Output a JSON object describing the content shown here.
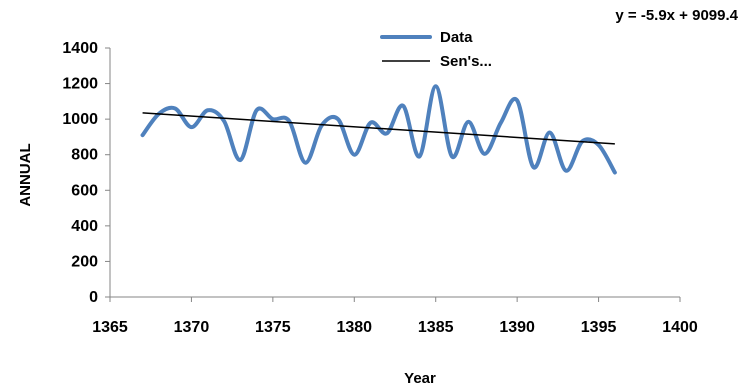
{
  "chart_data": {
    "type": "line",
    "xlabel": "Year",
    "ylabel": "ANNUAL",
    "xlim": [
      1365,
      1400
    ],
    "ylim": [
      0,
      1400
    ],
    "x_ticks": [
      1365,
      1370,
      1375,
      1380,
      1385,
      1390,
      1395,
      1400
    ],
    "y_ticks": [
      0,
      200,
      400,
      600,
      800,
      1000,
      1200,
      1400
    ],
    "grid": false,
    "legend_position": "top-right",
    "equation": "y = -5.9x + 9099.4",
    "series": [
      {
        "name": "Data",
        "color": "#4F81BD",
        "style": "smooth",
        "x": [
          1367,
          1368,
          1369,
          1370,
          1371,
          1372,
          1373,
          1374,
          1375,
          1376,
          1377,
          1378,
          1379,
          1380,
          1381,
          1382,
          1383,
          1384,
          1385,
          1386,
          1387,
          1388,
          1389,
          1390,
          1391,
          1392,
          1393,
          1394,
          1395,
          1396
        ],
        "y": [
          910,
          1030,
          1060,
          955,
          1050,
          990,
          770,
          1050,
          1000,
          990,
          755,
          965,
          1000,
          800,
          980,
          920,
          1075,
          790,
          1185,
          790,
          985,
          805,
          980,
          1105,
          730,
          925,
          710,
          875,
          855,
          700
        ]
      },
      {
        "name": "Sen's...",
        "color": "#000000",
        "style": "straight",
        "x": [
          1367,
          1396
        ],
        "y": [
          1035,
          861
        ]
      }
    ]
  }
}
